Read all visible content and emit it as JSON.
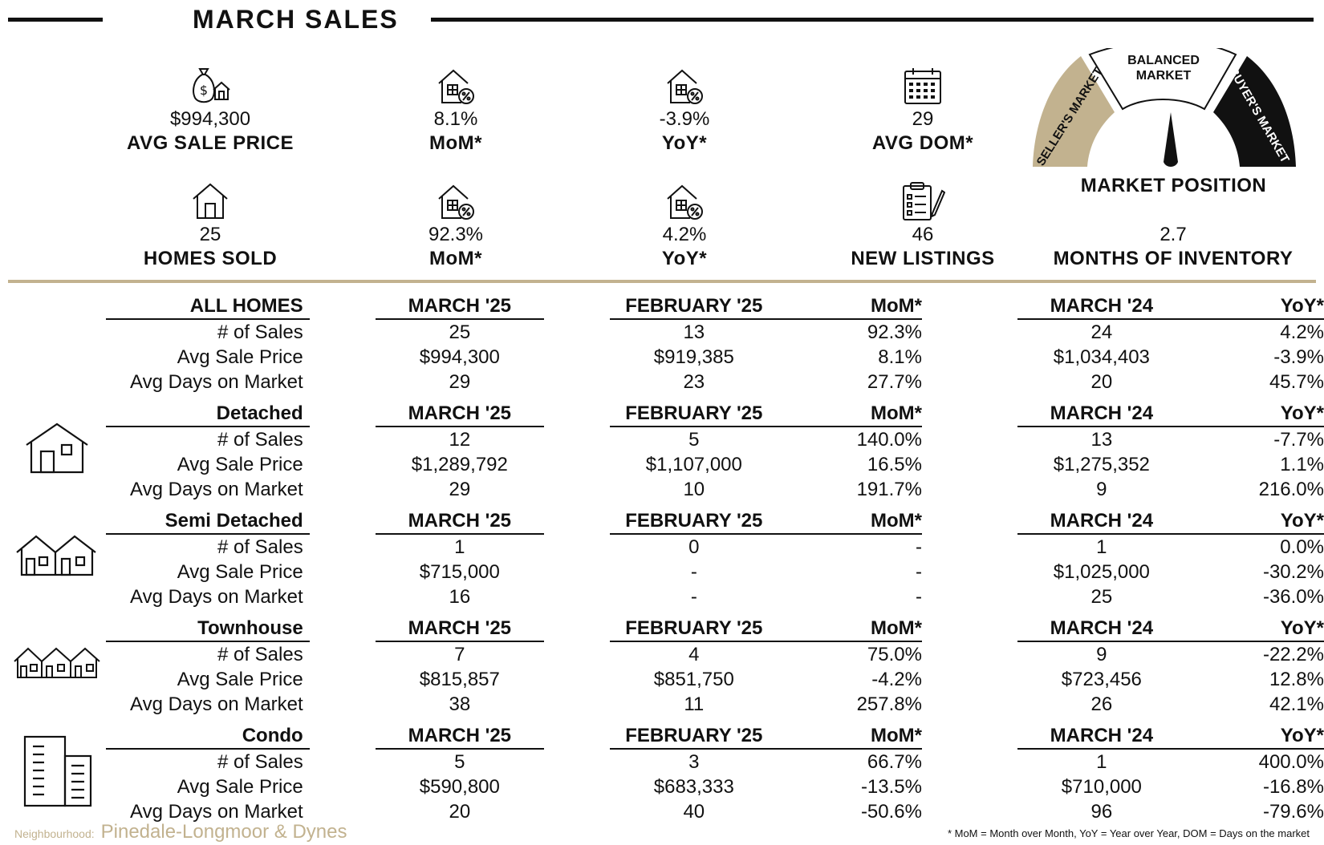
{
  "title": "MARCH SALES",
  "colors": {
    "gold": "#c2b28f",
    "black": "#111111"
  },
  "kpis_top": [
    {
      "icon": "money-bag-house-icon",
      "value": "$994,300",
      "label": "AVG SALE PRICE"
    },
    {
      "icon": "house-percent-icon",
      "value": "8.1%",
      "label": "MoM*"
    },
    {
      "icon": "house-percent-icon",
      "value": "-3.9%",
      "label": "YoY*"
    },
    {
      "icon": "calendar-icon",
      "value": "29",
      "label": "AVG DOM*"
    }
  ],
  "kpis_bottom": [
    {
      "icon": "house-icon",
      "value": "25",
      "label": "HOMES SOLD"
    },
    {
      "icon": "house-percent-icon",
      "value": "92.3%",
      "label": "MoM*"
    },
    {
      "icon": "house-percent-icon",
      "value": "4.2%",
      "label": "YoY*"
    },
    {
      "icon": "clipboard-pencil-icon",
      "value": "46",
      "label": "NEW LISTINGS"
    },
    {
      "value": "2.7",
      "label": "MONTHS OF INVENTORY"
    }
  ],
  "gauge": {
    "left": "SELLER'S MARKET",
    "middle_line1": "BALANCED",
    "middle_line2": "MARKET",
    "right": "BUYER'S MARKET",
    "position": "balanced",
    "label": "MARKET POSITION"
  },
  "table": {
    "col_march25": "MARCH '25",
    "col_feb25": "FEBRUARY '25",
    "col_mom": "MoM*",
    "col_march24": "MARCH '24",
    "col_yoy": "YoY*",
    "sections": [
      {
        "name": "ALL HOMES",
        "icon": "",
        "rows": [
          {
            "label": "# of Sales",
            "m25": "25",
            "f25": "13",
            "mom": "92.3%",
            "m24": "24",
            "yoy": "4.2%"
          },
          {
            "label": "Avg Sale Price",
            "m25": "$994,300",
            "f25": "$919,385",
            "mom": "8.1%",
            "m24": "$1,034,403",
            "yoy": "-3.9%"
          },
          {
            "label": "Avg Days on Market",
            "m25": "29",
            "f25": "23",
            "mom": "27.7%",
            "m24": "20",
            "yoy": "45.7%"
          }
        ]
      },
      {
        "name": "Detached",
        "icon": "detached-house-icon",
        "rows": [
          {
            "label": "# of Sales",
            "m25": "12",
            "f25": "5",
            "mom": "140.0%",
            "m24": "13",
            "yoy": "-7.7%"
          },
          {
            "label": "Avg Sale Price",
            "m25": "$1,289,792",
            "f25": "$1,107,000",
            "mom": "16.5%",
            "m24": "$1,275,352",
            "yoy": "1.1%"
          },
          {
            "label": "Avg Days on Market",
            "m25": "29",
            "f25": "10",
            "mom": "191.7%",
            "m24": "9",
            "yoy": "216.0%"
          }
        ]
      },
      {
        "name": "Semi Detached",
        "icon": "semi-detached-icon",
        "rows": [
          {
            "label": "# of Sales",
            "m25": "1",
            "f25": "0",
            "mom": "-",
            "m24": "1",
            "yoy": "0.0%"
          },
          {
            "label": "Avg Sale Price",
            "m25": "$715,000",
            "f25": "-",
            "mom": "-",
            "m24": "$1,025,000",
            "yoy": "-30.2%"
          },
          {
            "label": "Avg Days on Market",
            "m25": "16",
            "f25": "-",
            "mom": "-",
            "m24": "25",
            "yoy": "-36.0%"
          }
        ]
      },
      {
        "name": "Townhouse",
        "icon": "townhouse-icon",
        "rows": [
          {
            "label": "# of Sales",
            "m25": "7",
            "f25": "4",
            "mom": "75.0%",
            "m24": "9",
            "yoy": "-22.2%"
          },
          {
            "label": "Avg Sale Price",
            "m25": "$815,857",
            "f25": "$851,750",
            "mom": "-4.2%",
            "m24": "$723,456",
            "yoy": "12.8%"
          },
          {
            "label": "Avg Days on Market",
            "m25": "38",
            "f25": "11",
            "mom": "257.8%",
            "m24": "26",
            "yoy": "42.1%"
          }
        ]
      },
      {
        "name": "Condo",
        "icon": "condo-building-icon",
        "rows": [
          {
            "label": "# of Sales",
            "m25": "5",
            "f25": "3",
            "mom": "66.7%",
            "m24": "1",
            "yoy": "400.0%"
          },
          {
            "label": "Avg Sale Price",
            "m25": "$590,800",
            "f25": "$683,333",
            "mom": "-13.5%",
            "m24": "$710,000",
            "yoy": "-16.8%"
          },
          {
            "label": "Avg Days on Market",
            "m25": "20",
            "f25": "40",
            "mom": "-50.6%",
            "m24": "96",
            "yoy": "-79.6%"
          }
        ]
      }
    ]
  },
  "footer": {
    "neighbourhood_label": "Neighbourhood:",
    "neighbourhood": "Pinedale-Longmoor & Dynes",
    "note": "* MoM = Month over Month, YoY = Year over Year, DOM = Days on the market"
  }
}
